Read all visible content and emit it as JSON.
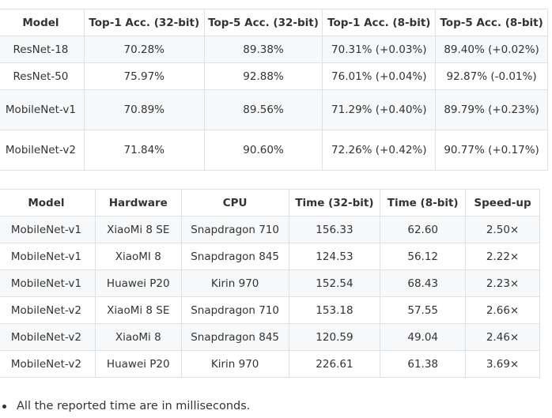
{
  "accuracy_table": {
    "headers": [
      "Model",
      "Top-1 Acc. (32-bit)",
      "Top-5 Acc. (32-bit)",
      "Top-1 Acc. (8-bit)",
      "Top-5 Acc. (8-bit)"
    ],
    "rows": [
      [
        "ResNet-18",
        "70.28%",
        "89.38%",
        "70.31% (+0.03%)",
        "89.40% (+0.02%)"
      ],
      [
        "ResNet-50",
        "75.97%",
        "92.88%",
        "76.01% (+0.04%)",
        "92.87% (-0.01%)"
      ],
      [
        "MobileNet-v1",
        "70.89%",
        "89.56%",
        "71.29% (+0.40%)",
        "89.79% (+0.23%)"
      ],
      [
        "MobileNet-v2",
        "71.84%",
        "90.60%",
        "72.26% (+0.42%)",
        "90.77% (+0.17%)"
      ]
    ]
  },
  "timing_table": {
    "headers": [
      "Model",
      "Hardware",
      "CPU",
      "Time (32-bit)",
      "Time (8-bit)",
      "Speed-up"
    ],
    "rows": [
      [
        "MobileNet-v1",
        "XiaoMi 8 SE",
        "Snapdragon 710",
        "156.33",
        "62.60",
        "2.50×"
      ],
      [
        "MobileNet-v1",
        "XiaoMI 8",
        "Snapdragon 845",
        "124.53",
        "56.12",
        "2.22×"
      ],
      [
        "MobileNet-v1",
        "Huawei P20",
        "Kirin 970",
        "152.54",
        "68.43",
        "2.23×"
      ],
      [
        "MobileNet-v2",
        "XiaoMi 8 SE",
        "Snapdragon 710",
        "153.18",
        "57.55",
        "2.66×"
      ],
      [
        "MobileNet-v2",
        "XiaoMi 8",
        "Snapdragon 845",
        "120.59",
        "49.04",
        "2.46×"
      ],
      [
        "MobileNet-v2",
        "Huawei P20",
        "Kirin 970",
        "226.61",
        "61.38",
        "3.69×"
      ]
    ]
  },
  "notes": [
    "All the reported time are in milliseconds."
  ]
}
